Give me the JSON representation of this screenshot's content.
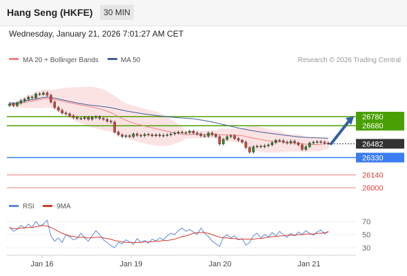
{
  "header": {
    "instrument": "Hang Seng (HKFE)",
    "timeframe": "30 MIN"
  },
  "datetime": "Wednesday, January 21, 2026 7:01:27 AM CET",
  "legend": {
    "ma20": "MA 20 + Bollinger Bands",
    "ma50": "MA 50",
    "credit": "Research © 2026 Trading Central"
  },
  "rsi_legend": {
    "rsi": "RSI",
    "ma9": "9MA"
  },
  "colors": {
    "resistance": "#4aa000",
    "support": "#3b7df0",
    "target_line": "#f08080",
    "current": "#333333",
    "arrow": "#2e5fa3",
    "candle_up": "#2a8a2a",
    "candle_down": "#d4453a",
    "ma20": "#f08080",
    "ma50": "#3e5f9a",
    "rsi": "#5b88dd",
    "rsi_ma": "#d43a2a"
  },
  "chart_data": [
    {
      "type": "candlestick",
      "title": "",
      "x_ticks": [
        "Jan 16",
        "Jan 19",
        "Jan 20",
        "Jan 21"
      ],
      "ylim": [
        25960,
        27100
      ],
      "close": [
        26920,
        26900,
        26930,
        26955,
        26970,
        26995,
        26985,
        27030,
        27025,
        27040,
        27015,
        26940,
        26880,
        26850,
        26820,
        26810,
        26790,
        26770,
        26760,
        26760,
        26770,
        26750,
        26770,
        26780,
        26760,
        26750,
        26730,
        26720,
        26610,
        26580,
        26560,
        26570,
        26560,
        26590,
        26575,
        26570,
        26585,
        26580,
        26570,
        26580,
        26570,
        26575,
        26580,
        26590,
        26600,
        26610,
        26605,
        26605,
        26620,
        26600,
        26590,
        26570,
        26565,
        26600,
        26580,
        26560,
        26480,
        26530,
        26560,
        26570,
        26540,
        26520,
        26500,
        26440,
        26390,
        26450,
        26455,
        26450,
        26460,
        26470,
        26495,
        26520,
        26515,
        26500,
        26490,
        26510,
        26490,
        26470,
        26420,
        26450,
        26490,
        26500,
        26505,
        26500,
        26490,
        26482
      ],
      "levels": {
        "resistance": [
          26780,
          26680
        ],
        "current": 26482,
        "support": [
          26330
        ],
        "targets": [
          26140,
          26000
        ]
      },
      "level_labels": [
        "26780",
        "26680",
        "26482",
        "26330",
        "26140",
        "26000"
      ]
    },
    {
      "type": "line",
      "title": "RSI",
      "y_ticks": [
        "70",
        "50",
        "30"
      ],
      "ylim": [
        20,
        80
      ],
      "rsi": [
        62,
        55,
        58,
        64,
        60,
        66,
        61,
        70,
        63,
        66,
        72,
        48,
        40,
        45,
        38,
        50,
        47,
        42,
        44,
        52,
        45,
        40,
        48,
        56,
        50,
        42,
        38,
        33,
        30,
        38,
        36,
        42,
        39,
        35,
        44,
        38,
        41,
        37,
        43,
        40,
        45,
        42,
        48,
        52,
        50,
        56,
        60,
        55,
        58,
        54,
        50,
        60,
        52,
        47,
        40,
        36,
        32,
        46,
        50,
        45,
        48,
        42,
        44,
        34,
        38,
        48,
        52,
        45,
        50,
        47,
        53,
        48,
        55,
        50,
        46,
        52,
        48,
        54,
        50,
        56,
        52,
        49,
        54,
        57,
        51,
        55
      ],
      "ma9": [
        60,
        59,
        59,
        60,
        60,
        61,
        61,
        62,
        63,
        64,
        63,
        61,
        58,
        55,
        52,
        50,
        48,
        47,
        46,
        46,
        46,
        45,
        45,
        46,
        46,
        45,
        44,
        43,
        41,
        40,
        39,
        38,
        38,
        38,
        38,
        38,
        39,
        39,
        39,
        40,
        40,
        41,
        41,
        42,
        43,
        45,
        47,
        48,
        50,
        52,
        53,
        53,
        53,
        52,
        50,
        48,
        46,
        45,
        45,
        44,
        44,
        43,
        43,
        43,
        43,
        43,
        44,
        44,
        45,
        46,
        47,
        47,
        48,
        48,
        49,
        49,
        49,
        50,
        50,
        51,
        51,
        51,
        52,
        52,
        53,
        54
      ]
    }
  ]
}
